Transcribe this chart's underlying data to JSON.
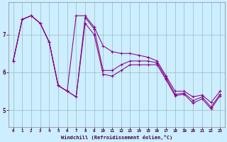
{
  "xlabel": "Windchill (Refroidissement éolien,°C)",
  "bg_color": "#cceeff",
  "line_color": "#880088",
  "grid_color": "#99bbbb",
  "x_ticks": [
    0,
    1,
    2,
    3,
    4,
    5,
    6,
    7,
    8,
    9,
    10,
    11,
    12,
    13,
    14,
    15,
    16,
    17,
    18,
    19,
    20,
    21,
    22,
    23
  ],
  "y_ticks": [
    5,
    6,
    7
  ],
  "xlim": [
    -0.5,
    23.5
  ],
  "ylim": [
    4.55,
    7.85
  ],
  "series": {
    "line1": [
      6.3,
      7.4,
      7.5,
      7.3,
      6.8,
      5.65,
      5.5,
      5.35,
      7.35,
      7.05,
      6.0,
      5.95,
      6.05,
      6.2,
      6.25,
      6.25,
      6.25,
      5.85,
      5.4,
      5.45,
      5.2,
      5.3,
      5.05,
      5.4
    ],
    "line2": [
      6.3,
      7.4,
      7.5,
      7.3,
      6.8,
      5.65,
      5.5,
      5.35,
      7.5,
      7.2,
      6.5,
      6.3,
      6.35,
      6.4,
      6.35,
      6.35,
      6.25,
      5.85,
      5.4,
      5.45,
      5.25,
      5.35,
      5.1,
      5.45
    ],
    "line3": [
      6.3,
      7.4,
      7.5,
      7.3,
      6.8,
      5.65,
      5.5,
      5.35,
      7.5,
      7.2,
      6.5,
      6.3,
      6.35,
      6.4,
      6.35,
      6.35,
      6.25,
      5.85,
      5.4,
      5.45,
      5.25,
      5.35,
      5.1,
      5.45
    ]
  },
  "line_top": [
    6.3,
    7.4,
    7.5,
    7.3,
    6.8,
    5.65,
    5.5,
    7.5,
    7.5,
    7.2,
    6.7,
    6.55,
    6.5,
    6.5,
    6.45,
    6.4,
    6.3,
    5.9,
    5.5,
    5.5,
    5.35,
    5.4,
    5.2,
    5.5
  ],
  "line_mid": [
    6.3,
    7.4,
    7.5,
    7.3,
    6.8,
    5.65,
    5.5,
    5.35,
    7.45,
    7.15,
    6.05,
    6.05,
    6.2,
    6.3,
    6.3,
    6.3,
    6.25,
    5.85,
    5.42,
    5.45,
    5.25,
    5.35,
    5.08,
    5.42
  ],
  "line_bot": [
    6.3,
    7.4,
    7.5,
    7.3,
    6.8,
    5.65,
    5.5,
    5.35,
    7.3,
    7.0,
    5.95,
    5.9,
    6.05,
    6.2,
    6.2,
    6.2,
    6.2,
    5.8,
    5.38,
    5.42,
    5.18,
    5.3,
    5.03,
    5.38
  ]
}
